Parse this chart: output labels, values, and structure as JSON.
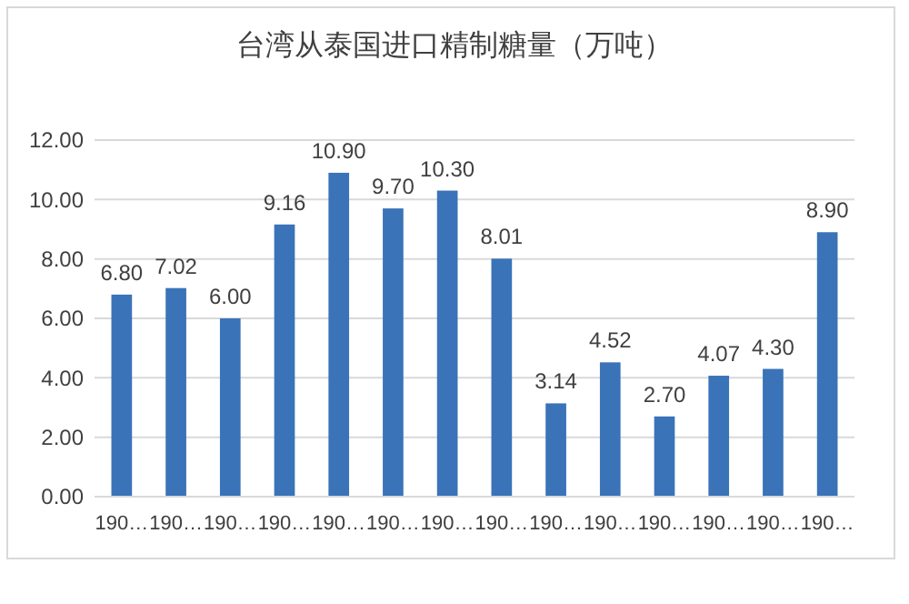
{
  "chart_data": {
    "type": "bar",
    "title": "台湾从泰国进口精制糖量（万吨）",
    "categories": [
      "190…",
      "190…",
      "190…",
      "190…",
      "190…",
      "190…",
      "190…",
      "190…",
      "190…",
      "190…",
      "190…",
      "190…",
      "190…",
      "190…"
    ],
    "values": [
      6.8,
      7.02,
      6.0,
      9.16,
      10.9,
      9.7,
      10.3,
      8.01,
      3.14,
      4.52,
      2.7,
      4.07,
      4.3,
      8.9
    ],
    "value_labels": [
      "6.80",
      "7.02",
      "6.00",
      "9.16",
      "10.90",
      "9.70",
      "10.30",
      "8.01",
      "3.14",
      "4.52",
      "2.70",
      "4.07",
      "4.30",
      "8.90"
    ],
    "color": "#3a73b8",
    "ylim": [
      0,
      12
    ],
    "yticks": [
      {
        "value": 0,
        "label": "0.00"
      },
      {
        "value": 2,
        "label": "2.00"
      },
      {
        "value": 4,
        "label": "4.00"
      },
      {
        "value": 6,
        "label": "6.00"
      },
      {
        "value": 8,
        "label": "8.00"
      },
      {
        "value": 10,
        "label": "10.00"
      },
      {
        "value": 12,
        "label": "12.00"
      }
    ],
    "grid": "y"
  }
}
